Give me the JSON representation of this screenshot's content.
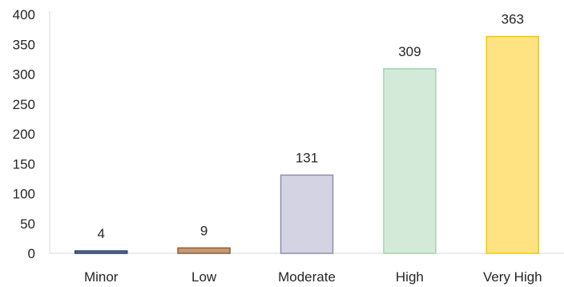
{
  "chart_data": {
    "type": "bar",
    "categories": [
      "Minor",
      "Low",
      "Moderate",
      "High",
      "Very High"
    ],
    "values": [
      4,
      9,
      131,
      309,
      363
    ],
    "data_labels": [
      "4",
      "9",
      "131",
      "309",
      "363"
    ],
    "ylim": [
      0,
      400
    ],
    "yticks": [
      0,
      50,
      100,
      150,
      200,
      250,
      300,
      350,
      400
    ],
    "grid": false,
    "legend": "none",
    "colors": {
      "fill": [
        "#5b6f9a",
        "#c49a74",
        "#d4d3e3",
        "#d3ead9",
        "#ffe383"
      ],
      "stroke": [
        "#2f3f66",
        "#8c5f35",
        "#8f8dae",
        "#a4d3b1",
        "#f2c800"
      ],
      "axis": "#d9d9d9"
    }
  }
}
